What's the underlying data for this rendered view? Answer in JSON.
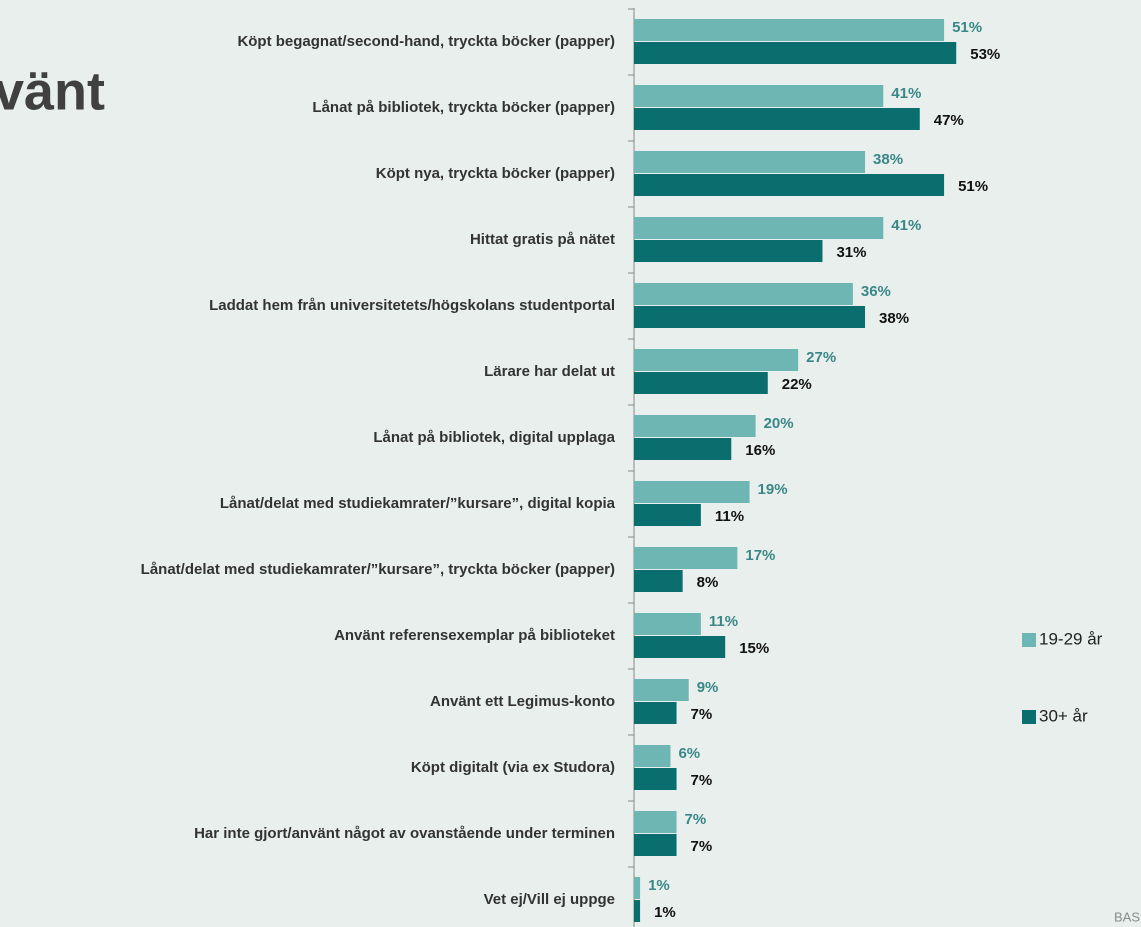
{
  "chart_data": {
    "type": "barh",
    "title": "vänt",
    "source": "BAS",
    "categories": [
      "Köpt begagnat/second-hand, tryckta böcker (papper)",
      "Lånat på bibliotek, tryckta böcker (papper)",
      "Köpt nya, tryckta böcker (papper)",
      "Hittat gratis på nätet",
      "Laddat hem från universitetets/högskolans studentportal",
      "Lärare har delat ut",
      "Lånat på bibliotek, digital upplaga",
      "Lånat/delat med studiekamrater/”kursare”, digital kopia",
      "Lånat/delat med studiekamrater/”kursare”, tryckta böcker (papper)",
      "Använt referensexemplar på biblioteket",
      "Använt ett Legimus-konto",
      "Köpt digitalt (via ex Studora)",
      "Har inte gjort/använt något av ovanstående under terminen",
      "Vet ej/Vill ej uppge"
    ],
    "series": [
      {
        "name": "19-29 år",
        "color": "#6db6b3",
        "label_color": "#3a8787",
        "values": [
          51,
          41,
          38,
          41,
          36,
          27,
          20,
          19,
          17,
          11,
          9,
          6,
          7,
          1
        ],
        "value_labels": [
          "51%",
          "41%",
          "38%",
          "41%",
          "36%",
          "27%",
          "20%",
          "19%",
          "17%",
          "11%",
          "9%",
          "6%",
          "7%",
          "1%"
        ]
      },
      {
        "name": "30+ år",
        "color": "#0b6e6e",
        "label_color": "#111111",
        "values": [
          53,
          47,
          51,
          31,
          38,
          22,
          16,
          11,
          8,
          15,
          7,
          7,
          7,
          1
        ],
        "value_labels": [
          "53%",
          "47%",
          "51%",
          "31%",
          "38%",
          "22%",
          "16%",
          "11%",
          "8%",
          "15%",
          "7%",
          "7%",
          "7%",
          "1%"
        ]
      }
    ],
    "legend": "right"
  }
}
